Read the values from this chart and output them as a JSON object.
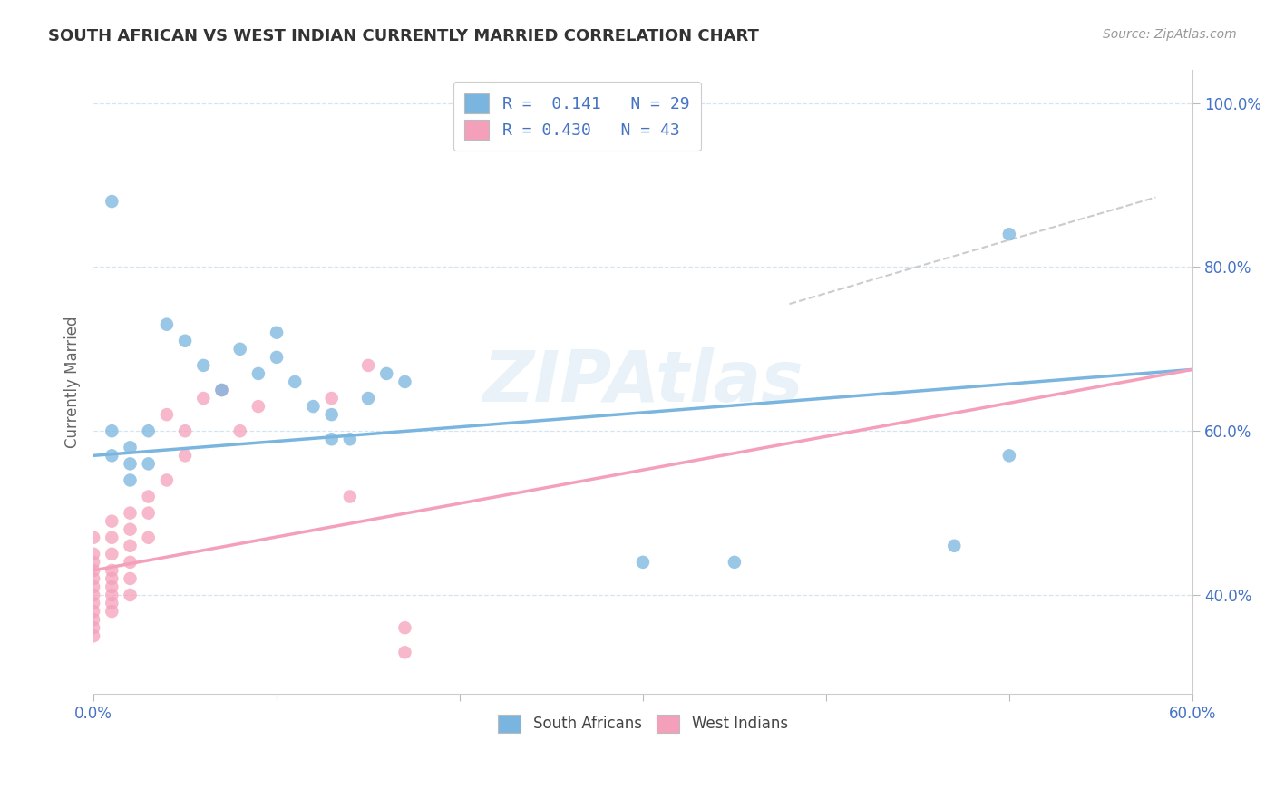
{
  "title": "SOUTH AFRICAN VS WEST INDIAN CURRENTLY MARRIED CORRELATION CHART",
  "source_text": "Source: ZipAtlas.com",
  "ylabel": "Currently Married",
  "xlim": [
    0.0,
    0.6
  ],
  "ylim": [
    0.28,
    1.04
  ],
  "xticks": [
    0.0,
    0.1,
    0.2,
    0.3,
    0.4,
    0.5,
    0.6
  ],
  "xticklabels": [
    "0.0%",
    "",
    "",
    "",
    "",
    "",
    "60.0%"
  ],
  "yticks": [
    0.4,
    0.6,
    0.8,
    1.0
  ],
  "yticklabels": [
    "40.0%",
    "60.0%",
    "80.0%",
    "100.0%"
  ],
  "legend1_label": "R =  0.141   N = 29",
  "legend2_label": "R = 0.430   N = 43",
  "watermark": "ZIPAtlas",
  "blue_color": "#7ab5e0",
  "pink_color": "#f5a0bb",
  "blue_scatter": [
    [
      0.01,
      0.88
    ],
    [
      0.04,
      0.73
    ],
    [
      0.05,
      0.71
    ],
    [
      0.06,
      0.68
    ],
    [
      0.07,
      0.65
    ],
    [
      0.08,
      0.7
    ],
    [
      0.09,
      0.67
    ],
    [
      0.1,
      0.72
    ],
    [
      0.1,
      0.69
    ],
    [
      0.11,
      0.66
    ],
    [
      0.12,
      0.63
    ],
    [
      0.13,
      0.59
    ],
    [
      0.13,
      0.62
    ],
    [
      0.14,
      0.59
    ],
    [
      0.15,
      0.64
    ],
    [
      0.16,
      0.67
    ],
    [
      0.17,
      0.66
    ],
    [
      0.02,
      0.58
    ],
    [
      0.02,
      0.56
    ],
    [
      0.03,
      0.6
    ],
    [
      0.01,
      0.6
    ],
    [
      0.01,
      0.57
    ],
    [
      0.02,
      0.54
    ],
    [
      0.03,
      0.56
    ],
    [
      0.35,
      0.44
    ],
    [
      0.47,
      0.46
    ],
    [
      0.5,
      0.84
    ],
    [
      0.5,
      0.57
    ],
    [
      0.3,
      0.44
    ]
  ],
  "pink_scatter": [
    [
      0.0,
      0.47
    ],
    [
      0.0,
      0.45
    ],
    [
      0.0,
      0.44
    ],
    [
      0.0,
      0.43
    ],
    [
      0.0,
      0.42
    ],
    [
      0.0,
      0.41
    ],
    [
      0.0,
      0.4
    ],
    [
      0.0,
      0.39
    ],
    [
      0.0,
      0.38
    ],
    [
      0.0,
      0.37
    ],
    [
      0.0,
      0.36
    ],
    [
      0.0,
      0.35
    ],
    [
      0.01,
      0.49
    ],
    [
      0.01,
      0.47
    ],
    [
      0.01,
      0.45
    ],
    [
      0.01,
      0.43
    ],
    [
      0.01,
      0.42
    ],
    [
      0.01,
      0.41
    ],
    [
      0.01,
      0.4
    ],
    [
      0.01,
      0.39
    ],
    [
      0.01,
      0.38
    ],
    [
      0.02,
      0.5
    ],
    [
      0.02,
      0.48
    ],
    [
      0.02,
      0.46
    ],
    [
      0.02,
      0.44
    ],
    [
      0.02,
      0.42
    ],
    [
      0.02,
      0.4
    ],
    [
      0.03,
      0.52
    ],
    [
      0.03,
      0.5
    ],
    [
      0.03,
      0.47
    ],
    [
      0.04,
      0.54
    ],
    [
      0.04,
      0.62
    ],
    [
      0.05,
      0.6
    ],
    [
      0.05,
      0.57
    ],
    [
      0.06,
      0.64
    ],
    [
      0.07,
      0.65
    ],
    [
      0.08,
      0.6
    ],
    [
      0.09,
      0.63
    ],
    [
      0.13,
      0.64
    ],
    [
      0.14,
      0.52
    ],
    [
      0.15,
      0.68
    ],
    [
      0.17,
      0.33
    ],
    [
      0.17,
      0.36
    ]
  ],
  "blue_trend_x": [
    0.0,
    0.6
  ],
  "blue_trend_y": [
    0.57,
    0.675
  ],
  "pink_trend_x": [
    0.0,
    0.6
  ],
  "pink_trend_y": [
    0.43,
    0.675
  ],
  "diag_line_x": [
    0.38,
    0.58
  ],
  "diag_line_y": [
    0.755,
    0.885
  ]
}
